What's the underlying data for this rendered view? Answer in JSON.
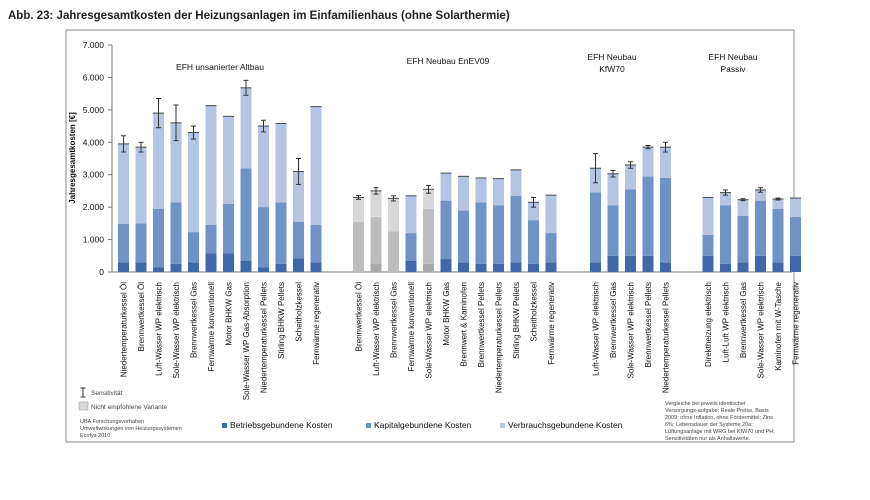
{
  "chart_data": {
    "type": "bar",
    "stacked": true,
    "title": "Abb. 23: Jahresgesamtkosten der Heizungsanlagen im Einfamilienhaus (ohne Solarthermie)",
    "ylabel": "Jahresgesamtkosten [€]",
    "ylim": [
      0,
      7000
    ],
    "yticks": [
      "0",
      "1.000",
      "2.000",
      "3.000",
      "4.000",
      "5.000",
      "6.000",
      "7.000"
    ],
    "series_names": [
      "Betriebsgebundene Kosten",
      "Kapitalgebundene Kosten",
      "Verbrauchsgebundene Kosten"
    ],
    "colors": {
      "betrieb": "#3f68a8",
      "kapital": "#6f93c7",
      "verbrauch": "#b5c4e2",
      "gray_betrieb": "#a9a9a9",
      "gray_kapital": "#bdbdbd",
      "gray_verbrauch": "#d8d8d8",
      "frame": "#8c8c8c"
    },
    "groups": [
      {
        "label": "EFH unsanierter Altbau",
        "bars": [
          {
            "name": "Niedertemperaturkessel Öl",
            "betrieb": 300,
            "kapital": 1180,
            "verbrauch": 2470,
            "err": 250
          },
          {
            "name": "Brennwertkessel Öl",
            "betrieb": 300,
            "kapital": 1200,
            "verbrauch": 2350,
            "err": 150
          },
          {
            "name": "Luft-Wasser WP elektrisch",
            "betrieb": 150,
            "kapital": 1800,
            "verbrauch": 2950,
            "err": 450
          },
          {
            "name": "Sole-Wasser WP elektrisch",
            "betrieb": 250,
            "kapital": 1900,
            "verbrauch": 2450,
            "err": 550
          },
          {
            "name": "Brennwertkessel Gas",
            "betrieb": 300,
            "kapital": 930,
            "verbrauch": 3070,
            "err": 200
          },
          {
            "name": "Fernwärme konventionell",
            "betrieb": 580,
            "kapital": 870,
            "verbrauch": 3680,
            "err": 0
          },
          {
            "name": "Motor BHKW Gas",
            "betrieb": 580,
            "kapital": 1520,
            "verbrauch": 2700,
            "err": 0
          },
          {
            "name": "Sole-Wasser WP Gas-Absorption",
            "betrieb": 350,
            "kapital": 2850,
            "verbrauch": 2480,
            "err": 230
          },
          {
            "name": "Niedertemperaturkessel Pellets",
            "betrieb": 150,
            "kapital": 1850,
            "verbrauch": 2500,
            "err": 180
          },
          {
            "name": "Stirling BHKW Pellets",
            "betrieb": 250,
            "kapital": 1900,
            "verbrauch": 2430,
            "err": 0
          },
          {
            "name": "Scheitholzkessel",
            "betrieb": 420,
            "kapital": 1130,
            "verbrauch": 1550,
            "err": 400
          },
          {
            "name": "Fernwärme regenerativ",
            "betrieb": 300,
            "kapital": 1150,
            "verbrauch": 3650,
            "err": 0
          }
        ]
      },
      {
        "label": "EFH Neubau EnEV09",
        "bars": [
          {
            "name": "Brennwertkessel Öl",
            "betrieb": 0,
            "kapital": 1550,
            "verbrauch": 750,
            "err": 60,
            "gray": true
          },
          {
            "name": "Luft-Wasser WP elektrisch",
            "betrieb": 250,
            "kapital": 1450,
            "verbrauch": 800,
            "err": 100,
            "gray": true
          },
          {
            "name": "Brennwertkessel Gas",
            "betrieb": 0,
            "kapital": 1250,
            "verbrauch": 1020,
            "err": 80,
            "gray": true
          },
          {
            "name": "Fernwärme konventionell",
            "betrieb": 350,
            "kapital": 850,
            "verbrauch": 1150,
            "err": 0
          },
          {
            "name": "Sole-Wasser WP elektrisch",
            "betrieb": 250,
            "kapital": 1700,
            "verbrauch": 600,
            "err": 120,
            "gray": true
          },
          {
            "name": "Motor BHKW Gas",
            "betrieb": 400,
            "kapital": 1800,
            "verbrauch": 850,
            "err": 0
          },
          {
            "name": "Brennwert & Kaminofen",
            "betrieb": 300,
            "kapital": 1600,
            "verbrauch": 1050,
            "err": 0
          },
          {
            "name": "Brennwertkessel Pellets",
            "betrieb": 250,
            "kapital": 1900,
            "verbrauch": 750,
            "err": 0
          },
          {
            "name": "Niedertemperaturkessel Pellets",
            "betrieb": 250,
            "kapital": 1800,
            "verbrauch": 830,
            "err": 0
          },
          {
            "name": "Stirling BHKW Pellets",
            "betrieb": 300,
            "kapital": 2050,
            "verbrauch": 800,
            "err": 0
          },
          {
            "name": "Scheitholzkessel",
            "betrieb": 250,
            "kapital": 1350,
            "verbrauch": 550,
            "err": 150
          },
          {
            "name": "Fernwärme regenerativ",
            "betrieb": 300,
            "kapital": 900,
            "verbrauch": 1170,
            "err": 0
          }
        ]
      },
      {
        "label": "EFH Neubau KfW70",
        "label_line2": "",
        "bars": [
          {
            "name": "Luft-Wasser WP elektrisch",
            "betrieb": 300,
            "kapital": 2150,
            "verbrauch": 750,
            "err": 450
          },
          {
            "name": "Brennwertkessel Gas",
            "betrieb": 500,
            "kapital": 1550,
            "verbrauch": 980,
            "err": 100
          },
          {
            "name": "Sole-Wasser WP elektrisch",
            "betrieb": 500,
            "kapital": 2050,
            "verbrauch": 750,
            "err": 100
          },
          {
            "name": "Brennwertkessel Pellets",
            "betrieb": 500,
            "kapital": 2450,
            "verbrauch": 900,
            "err": 50
          },
          {
            "name": "Niedertemperaturkessel Pellets",
            "betrieb": 300,
            "kapital": 2600,
            "verbrauch": 950,
            "err": 150
          }
        ]
      },
      {
        "label": "EFH Neubau Passiv",
        "bars": [
          {
            "name": "Direktheizung elektrisch",
            "betrieb": 500,
            "kapital": 650,
            "verbrauch": 1150,
            "err": 0
          },
          {
            "name": "Luft-Luft WP elektrisch",
            "betrieb": 250,
            "kapital": 1800,
            "verbrauch": 400,
            "err": 80
          },
          {
            "name": "Brennwertkessel Gas",
            "betrieb": 300,
            "kapital": 1430,
            "verbrauch": 500,
            "err": 30
          },
          {
            "name": "Sole-Wasser WP elektrisch",
            "betrieb": 500,
            "kapital": 1700,
            "verbrauch": 330,
            "err": 70
          },
          {
            "name": "Kaminofen mit W-Tasche",
            "betrieb": 300,
            "kapital": 1650,
            "verbrauch": 300,
            "err": 30
          },
          {
            "name": "Fernwärme regenerativ",
            "betrieb": 500,
            "kapital": 1200,
            "verbrauch": 580,
            "err": 0
          }
        ]
      }
    ],
    "group_labels": {
      "g1": "EFH unsanierter Altbau",
      "g2": "EFH Neubau EnEV09",
      "g3a": "EFH Neubau",
      "g3b": "KfW70",
      "g4a": "EFH Neubau",
      "g4b": "Passiv"
    },
    "legend": {
      "sensitivity": "Sensitivität",
      "not_recommended": "Nicht empfohlene Variante",
      "betrieb": "Betriebsgebundene Kosten",
      "kapital": "Kapitalgebundene Kosten",
      "verbrauch": "Verbrauchsgebundene Kosten"
    },
    "source_note": [
      "UBA Forschungsvorhaben",
      "Umweltwirkungen von Heizungssystemen",
      "Ecofys 2010"
    ],
    "footnote": [
      "Vergleiche bei jeweils identischer",
      "Versorgungs-aufgabe; Reale Preise, Basis",
      "2009; ohne Inflation, ohne Fördermittel; Zins",
      "6%; Lebensdauer der Systeme 20a;",
      "Lüftungsanlage mit WRG bei KfW70 und PH;",
      "Sensitivitäten nur als Anhaltswerte."
    ]
  }
}
